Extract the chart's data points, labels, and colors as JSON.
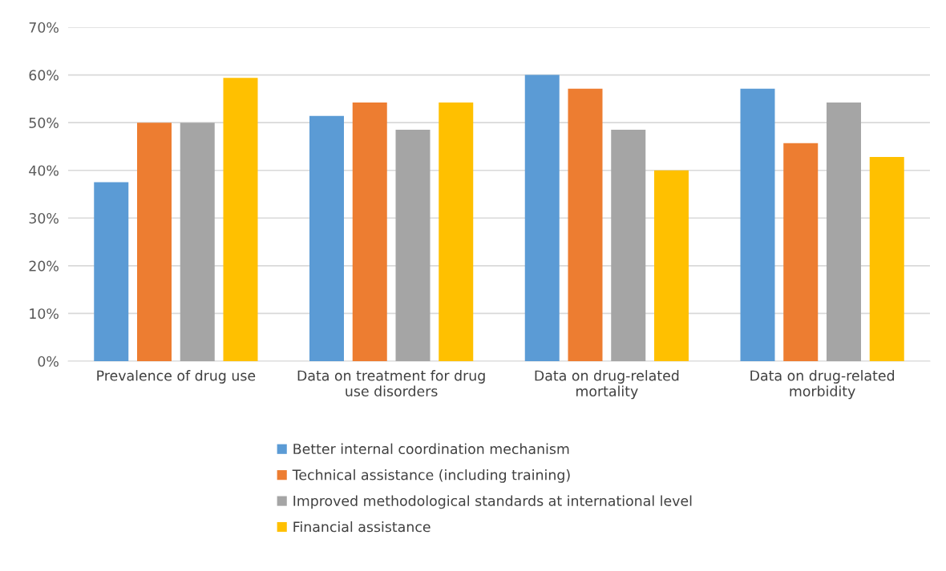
{
  "chart_data": {
    "type": "bar",
    "categories": [
      "Prevalence of drug use",
      "Data on treatment for drug\nuse disorders",
      "Data on drug-related\nmortality",
      "Data on drug-related\nmorbidity"
    ],
    "series": [
      {
        "name": "Better internal coordination mechanism",
        "color": "#5b9bd5",
        "values": [
          37.5,
          51.4,
          60.0,
          57.1
        ]
      },
      {
        "name": "Technical assistance (including training)",
        "color": "#ed7d31",
        "values": [
          50.0,
          54.2,
          57.1,
          45.7
        ]
      },
      {
        "name": "Improved methodological standards at international level",
        "color": "#a5a5a5",
        "values": [
          50.0,
          48.5,
          48.5,
          54.2
        ]
      },
      {
        "name": "Financial assistance",
        "color": "#ffc000",
        "values": [
          59.4,
          54.2,
          40.0,
          42.8
        ]
      }
    ],
    "ylim": [
      0,
      70
    ],
    "yticks": [
      {
        "value": 0,
        "label": "0%"
      },
      {
        "value": 10,
        "label": "10%"
      },
      {
        "value": 20,
        "label": "20%"
      },
      {
        "value": 30,
        "label": "30%"
      },
      {
        "value": 40,
        "label": "40%"
      },
      {
        "value": 50,
        "label": "50%"
      },
      {
        "value": 60,
        "label": "60%"
      },
      {
        "value": 70,
        "label": "70%"
      }
    ],
    "grid": "y",
    "legend": "bottom"
  }
}
